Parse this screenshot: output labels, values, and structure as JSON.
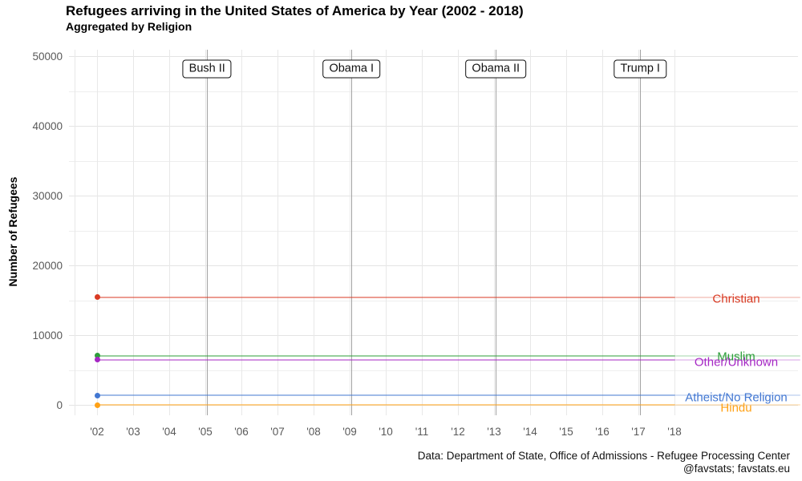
{
  "header": {
    "title": "Refugees arriving in the United States of America by Year (2002 - 2018)",
    "subtitle": "Aggregated by Religion"
  },
  "caption": {
    "line1": "Data: Department of State, Office of Admissions - Refugee Processing Center",
    "line2": "@favstats; favstats.eu"
  },
  "chart_data": {
    "type": "line",
    "title": "Refugees arriving in the United States of America by Year (2002 - 2018)",
    "subtitle": "Aggregated by Religion",
    "xlabel": "",
    "ylabel": "Number of Refugees",
    "x_years": [
      2002,
      2003,
      2004,
      2005,
      2006,
      2007,
      2008,
      2009,
      2010,
      2011,
      2012,
      2013,
      2014,
      2015,
      2016,
      2017,
      2018
    ],
    "x_tick_labels": [
      "'02",
      "'03",
      "'04",
      "'05",
      "'06",
      "'07",
      "'08",
      "'09",
      "'10",
      "'11",
      "'12",
      "'13",
      "'14",
      "'15",
      "'16",
      "'17",
      "'18"
    ],
    "ylim": [
      0,
      50000
    ],
    "y_major_ticks": [
      0,
      10000,
      20000,
      30000,
      40000,
      50000
    ],
    "y_minor_ticks": [
      5000,
      15000,
      25000,
      35000,
      45000
    ],
    "grid": true,
    "legend_position": "right-of-panel-colored-labels",
    "series": [
      {
        "name": "Christian",
        "color": "#d93a23",
        "value": 15500,
        "point_year": 2002,
        "line_from": 2002,
        "line_to": 2018,
        "label_dy": 2
      },
      {
        "name": "Muslim",
        "color": "#2d9e3a",
        "value": 7100,
        "point_year": 2002,
        "line_from": 2002,
        "line_to": 2018,
        "label_dy": 1
      },
      {
        "name": "Other/Unknown",
        "color": "#a527c4",
        "value": 6550,
        "point_year": 2002,
        "line_from": 2002,
        "line_to": 2018,
        "label_dy": 3
      },
      {
        "name": "Atheist/No Religion",
        "color": "#4277d2",
        "value": 1400,
        "point_year": 2002,
        "line_from": 2002,
        "line_to": 2018,
        "label_dy": 3
      },
      {
        "name": "Hindu",
        "color": "#ffa116",
        "value": 25,
        "point_year": 2002,
        "line_from": 2002,
        "line_to": 2018,
        "label_dy": 4
      }
    ],
    "annotations": [
      {
        "label": "Bush II",
        "year": 2005.05
      },
      {
        "label": "Obama I",
        "year": 2009.05
      },
      {
        "label": "Obama II",
        "year": 2013.05
      },
      {
        "label": "Trump I",
        "year": 2017.05
      }
    ]
  }
}
